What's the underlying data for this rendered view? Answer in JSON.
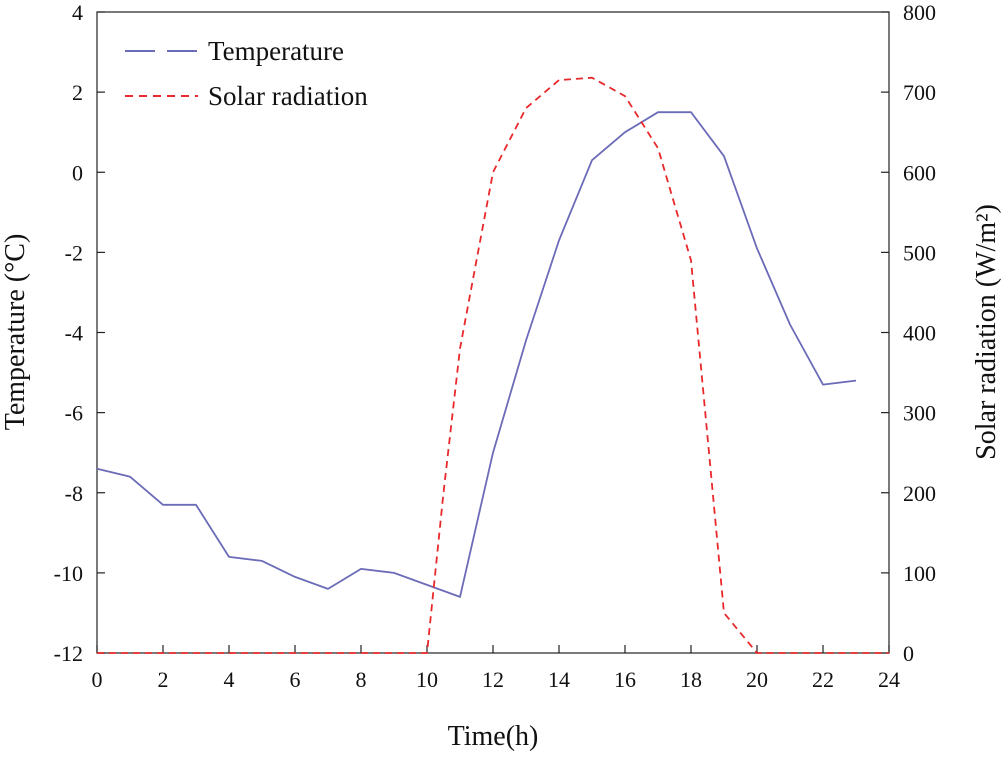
{
  "chart_data": {
    "type": "line",
    "xlabel": "Time(h)",
    "ylabel_left": "Temperature (°C)",
    "ylabel_right": "Solar radiation (W/m²)",
    "xlim": [
      0,
      24
    ],
    "ylim_left": [
      -12,
      4
    ],
    "ylim_right": [
      0,
      800
    ],
    "x_ticks": [
      "0",
      "2",
      "4",
      "6",
      "8",
      "10",
      "12",
      "14",
      "16",
      "18",
      "20",
      "22",
      "24"
    ],
    "y_left_ticks": [
      "4",
      "2",
      "0",
      "-2",
      "-4",
      "-6",
      "-8",
      "-10",
      "-12"
    ],
    "y_right_ticks": [
      "800",
      "700",
      "600",
      "500",
      "400",
      "300",
      "200",
      "100",
      "0"
    ],
    "legend_position": "top-left",
    "grid": false,
    "series": [
      {
        "name": "Temperature",
        "axis": "left",
        "color": "#6b6bb8",
        "style": "solid",
        "x": [
          0,
          1,
          2,
          3,
          4,
          5,
          6,
          7,
          8,
          9,
          10,
          11,
          12,
          13,
          14,
          15,
          16,
          17,
          18,
          19,
          20,
          21,
          22,
          23
        ],
        "values": [
          -7.4,
          -7.6,
          -8.3,
          -8.3,
          -9.6,
          -9.7,
          -10.1,
          -10.4,
          -9.9,
          -10.0,
          -10.3,
          -10.6,
          -7.0,
          -4.2,
          -1.7,
          0.3,
          1.0,
          1.5,
          1.5,
          0.4,
          -1.9,
          -3.8,
          -5.3,
          -5.2
        ]
      },
      {
        "name": "Solar radiation",
        "axis": "right",
        "color": "#e8282b",
        "style": "dashed",
        "x": [
          0,
          1,
          2,
          3,
          4,
          5,
          6,
          7,
          8,
          9,
          10,
          10.5,
          11,
          12,
          13,
          14,
          15,
          16,
          17,
          18,
          19,
          20,
          21,
          22,
          23,
          24
        ],
        "values": [
          0,
          0,
          0,
          0,
          0,
          0,
          0,
          0,
          0,
          0,
          0,
          200,
          380,
          600,
          680,
          715,
          718,
          695,
          630,
          490,
          50,
          0,
          0,
          0,
          0,
          0
        ]
      }
    ]
  }
}
